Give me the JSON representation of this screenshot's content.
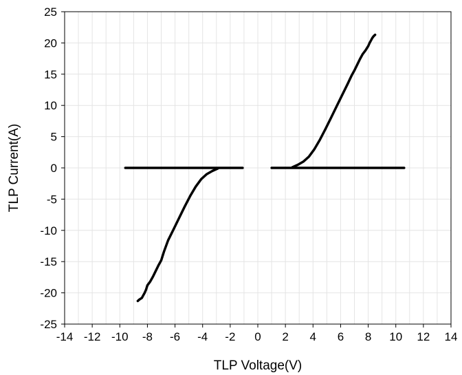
{
  "chart_data": {
    "type": "line",
    "title": "",
    "xlabel": "TLP Voltage(V)",
    "ylabel": "TLP Current(A)",
    "xlim": [
      -14,
      14
    ],
    "ylim": [
      -25,
      25
    ],
    "xticks": [
      -14,
      -12,
      -10,
      -8,
      -6,
      -4,
      -2,
      0,
      2,
      4,
      6,
      8,
      10,
      12,
      14
    ],
    "yticks": [
      -25,
      -20,
      -15,
      -10,
      -5,
      0,
      5,
      10,
      15,
      20,
      25
    ],
    "xtick_labels": [
      "-14",
      "-12",
      "-10",
      "-8",
      "-6",
      "-4",
      "-2",
      "0",
      "2",
      "4",
      "6",
      "8",
      "10",
      "12",
      "14"
    ],
    "ytick_labels": [
      "-25",
      "-20",
      "-15",
      "-10",
      "-5",
      "0",
      "5",
      "10",
      "15",
      "20",
      "25"
    ],
    "grid": true,
    "legend": false,
    "line_color": "#000000",
    "series": [
      {
        "x": [
          1.0,
          10.6
        ],
        "y": [
          0.0,
          0.0
        ]
      },
      {
        "x": [
          2.5,
          2.9,
          3.3,
          3.7,
          4.1,
          4.5,
          4.9,
          5.3,
          5.7,
          6.1,
          6.5,
          6.8,
          7.0,
          7.2,
          7.4,
          7.6,
          7.8,
          8.0,
          8.1,
          8.2,
          8.3,
          8.4,
          8.5
        ],
        "y": [
          0.1,
          0.5,
          1.0,
          1.8,
          3.0,
          4.5,
          6.2,
          8.0,
          9.8,
          11.6,
          13.4,
          14.8,
          15.6,
          16.5,
          17.4,
          18.2,
          18.8,
          19.5,
          20.0,
          20.4,
          20.8,
          21.1,
          21.3
        ]
      },
      {
        "x": [
          -9.6,
          -1.1
        ],
        "y": [
          0.0,
          0.0
        ]
      },
      {
        "x": [
          -2.9,
          -3.3,
          -3.7,
          -4.1,
          -4.5,
          -4.9,
          -5.3,
          -5.7,
          -6.1,
          -6.5,
          -6.8,
          -7.0,
          -7.2,
          -7.4,
          -7.6,
          -7.8,
          -8.0,
          -8.1,
          -8.2,
          -8.3,
          -8.4,
          -8.6,
          -8.7
        ],
        "y": [
          -0.1,
          -0.5,
          -1.0,
          -1.8,
          -3.0,
          -4.5,
          -6.2,
          -8.0,
          -9.8,
          -11.6,
          -13.4,
          -14.8,
          -15.6,
          -16.5,
          -17.4,
          -18.2,
          -18.8,
          -19.5,
          -20.0,
          -20.4,
          -20.8,
          -21.1,
          -21.3
        ]
      }
    ]
  }
}
